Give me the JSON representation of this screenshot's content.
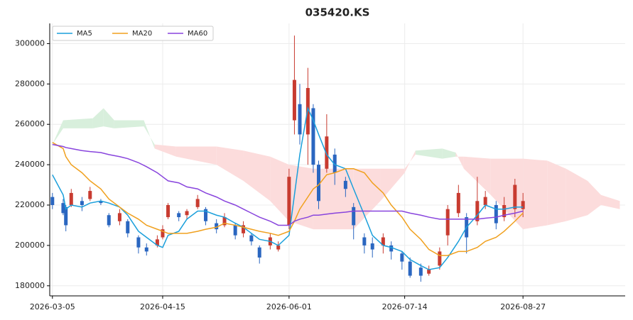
{
  "chart_data": {
    "type": "candlestick",
    "title": "035420.KS",
    "up_color": "#c83b30",
    "down_color": "#2a66c0",
    "cloud_up_color": "#d8efdc",
    "cloud_down_color": "#fcdcdc",
    "grid": true,
    "legend": "upper-left",
    "ylim": [
      175000,
      310000
    ],
    "yticks": [
      180000,
      200000,
      220000,
      240000,
      260000,
      280000,
      300000
    ],
    "xlim": [
      "2026-03-04",
      "2026-10-04"
    ],
    "xticks": [
      "2026-03-05",
      "2026-04-15",
      "2026-06-01",
      "2026-07-14",
      "2026-08-27"
    ],
    "candles": {
      "x": [
        "2026-03-05",
        "2026-03-09",
        "2026-03-10",
        "2026-03-12",
        "2026-03-16",
        "2026-03-19",
        "2026-03-23",
        "2026-03-26",
        "2026-03-30",
        "2026-04-02",
        "2026-04-06",
        "2026-04-09",
        "2026-04-13",
        "2026-04-15",
        "2026-04-17",
        "2026-04-21",
        "2026-04-24",
        "2026-04-28",
        "2026-05-01",
        "2026-05-05",
        "2026-05-08",
        "2026-05-12",
        "2026-05-15",
        "2026-05-18",
        "2026-05-21",
        "2026-05-25",
        "2026-05-28",
        "2026-06-01",
        "2026-06-03",
        "2026-06-05",
        "2026-06-08",
        "2026-06-10",
        "2026-06-12",
        "2026-06-15",
        "2026-06-18",
        "2026-06-22",
        "2026-06-25",
        "2026-06-29",
        "2026-07-02",
        "2026-07-06",
        "2026-07-09",
        "2026-07-13",
        "2026-07-16",
        "2026-07-20",
        "2026-07-23",
        "2026-07-27",
        "2026-07-30",
        "2026-08-03",
        "2026-08-06",
        "2026-08-10",
        "2026-08-13",
        "2026-08-17",
        "2026-08-20",
        "2026-08-24",
        "2026-08-27"
      ],
      "open": [
        224000,
        221000,
        219000,
        220000,
        222000,
        223000,
        222000,
        215000,
        212000,
        212000,
        204000,
        199000,
        200000,
        204000,
        214000,
        216000,
        215000,
        219000,
        218000,
        211000,
        210000,
        210000,
        206000,
        205000,
        199000,
        200000,
        198000,
        210000,
        262000,
        270000,
        255000,
        268000,
        240000,
        238000,
        245000,
        232000,
        219000,
        204000,
        201000,
        200000,
        200000,
        196000,
        192000,
        189000,
        186000,
        190000,
        205000,
        216000,
        214000,
        212000,
        220000,
        220000,
        214000,
        218000,
        218000
      ],
      "high": [
        226000,
        223000,
        220000,
        228000,
        224000,
        229000,
        223000,
        216000,
        218000,
        213000,
        205000,
        201000,
        205000,
        210000,
        221000,
        217000,
        218000,
        225000,
        219000,
        213000,
        216000,
        211000,
        212000,
        206000,
        200000,
        206000,
        202000,
        238000,
        304000,
        280000,
        288000,
        270000,
        242000,
        265000,
        248000,
        234000,
        221000,
        206000,
        204000,
        206000,
        202000,
        197000,
        194000,
        191000,
        190000,
        199000,
        220000,
        230000,
        216000,
        234000,
        227000,
        222000,
        224000,
        233000,
        226000
      ],
      "low": [
        218000,
        215000,
        207000,
        219000,
        217000,
        222000,
        220000,
        209000,
        210000,
        204000,
        196000,
        195000,
        199000,
        203000,
        213000,
        212000,
        213000,
        218000,
        210000,
        206000,
        209000,
        203000,
        204000,
        200000,
        191000,
        198000,
        197000,
        208000,
        255000,
        250000,
        240000,
        236000,
        218000,
        236000,
        230000,
        224000,
        203000,
        196000,
        194000,
        196000,
        193000,
        188000,
        184000,
        182000,
        185000,
        188000,
        200000,
        214000,
        196000,
        210000,
        218000,
        208000,
        212000,
        214000,
        214000
      ],
      "close": [
        220000,
        216000,
        210000,
        226000,
        220000,
        227000,
        221000,
        210000,
        216000,
        206000,
        199000,
        197000,
        203000,
        208000,
        220000,
        214000,
        217000,
        223000,
        212000,
        208000,
        214000,
        205000,
        210000,
        202000,
        194000,
        204000,
        200000,
        234000,
        282000,
        255000,
        278000,
        240000,
        222000,
        254000,
        236000,
        228000,
        210000,
        200000,
        198000,
        204000,
        197000,
        192000,
        185000,
        185000,
        188000,
        197000,
        218000,
        226000,
        204000,
        222000,
        224000,
        211000,
        220000,
        230000,
        222000
      ]
    },
    "series": [
      {
        "name": "MA5",
        "color": "#1a9fdb",
        "values": [
          235000,
          225000,
          218000,
          220000,
          219000,
          221000,
          222000,
          221000,
          219000,
          215000,
          207000,
          204000,
          200000,
          199000,
          205000,
          207000,
          213000,
          217000,
          217000,
          215000,
          214000,
          211000,
          209000,
          206000,
          203000,
          202000,
          200000,
          205000,
          225000,
          245000,
          268000,
          262000,
          255000,
          245000,
          240000,
          238000,
          228000,
          215000,
          205000,
          200000,
          199000,
          197000,
          193000,
          190000,
          188000,
          189000,
          194000,
          202000,
          209000,
          215000,
          220000,
          218000,
          218000,
          219000,
          219000
        ]
      },
      {
        "name": "MA20",
        "color": "#f0a01e",
        "values": [
          251000,
          248000,
          244000,
          240000,
          236000,
          232000,
          228000,
          223000,
          219000,
          216000,
          213000,
          210000,
          208000,
          207000,
          206000,
          206000,
          206000,
          207000,
          208000,
          209000,
          211000,
          210000,
          209000,
          208000,
          207000,
          206000,
          205000,
          207000,
          212000,
          218000,
          224000,
          228000,
          230000,
          235000,
          236000,
          238000,
          238000,
          236000,
          231000,
          226000,
          220000,
          214000,
          208000,
          203000,
          198000,
          195000,
          195000,
          197000,
          197000,
          199000,
          202000,
          204000,
          207000,
          212000,
          216000
        ]
      },
      {
        "name": "MA60",
        "color": "#8844dd",
        "values": [
          250000,
          249000,
          248500,
          248000,
          247000,
          246500,
          246000,
          245000,
          244000,
          243000,
          241000,
          239000,
          236000,
          234000,
          232000,
          231000,
          229000,
          228000,
          226000,
          224000,
          222000,
          220000,
          218000,
          216000,
          214000,
          212000,
          210000,
          210000,
          212000,
          213000,
          214000,
          215000,
          215000,
          215500,
          216000,
          216500,
          217000,
          217000,
          217000,
          217000,
          217000,
          217000,
          216000,
          215000,
          214000,
          213000,
          213000,
          213000,
          213000,
          213000,
          213500,
          214000,
          215000,
          216000,
          217000
        ]
      }
    ],
    "cloud": {
      "x": [
        "2026-03-05",
        "2026-03-09",
        "2026-03-20",
        "2026-03-24",
        "2026-03-28",
        "2026-04-08",
        "2026-04-12",
        "2026-04-20",
        "2026-05-05",
        "2026-05-15",
        "2026-05-25",
        "2026-06-01",
        "2026-06-10",
        "2026-06-25",
        "2026-07-05",
        "2026-07-14",
        "2026-07-18",
        "2026-07-28",
        "2026-08-02",
        "2026-08-05",
        "2026-08-15",
        "2026-08-27",
        "2026-09-05",
        "2026-09-12",
        "2026-09-20",
        "2026-09-25",
        "2026-10-02"
      ],
      "span_a": [
        250000,
        262000,
        263000,
        268000,
        262000,
        262000,
        248000,
        244000,
        240000,
        232000,
        222000,
        212000,
        208000,
        208000,
        222000,
        236000,
        247000,
        248000,
        246000,
        238000,
        225000,
        208000,
        210000,
        212000,
        215000,
        220000,
        218000
      ],
      "span_b": [
        250000,
        258000,
        258000,
        259000,
        258000,
        259000,
        250000,
        249000,
        249000,
        247000,
        244000,
        240000,
        238000,
        238000,
        238000,
        238000,
        245000,
        243000,
        244000,
        244000,
        243000,
        243000,
        242000,
        238000,
        232000,
        225000,
        222000
      ]
    }
  }
}
